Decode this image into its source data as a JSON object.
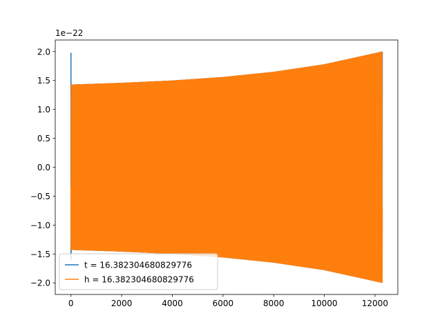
{
  "chart_data": {
    "type": "line",
    "title": "",
    "xlabel": "",
    "ylabel": "",
    "y_offset_label": "1e−22",
    "xlim": [
      -620,
      12900
    ],
    "ylim": [
      -2.2,
      2.2
    ],
    "x_ticks": [
      0,
      2000,
      4000,
      6000,
      8000,
      10000,
      12000
    ],
    "x_tick_labels": [
      "0",
      "2000",
      "4000",
      "6000",
      "8000",
      "10000",
      "12000"
    ],
    "y_ticks": [
      2.0,
      1.5,
      1.0,
      0.5,
      0.0,
      -0.5,
      -1.0,
      -1.5,
      -2.0
    ],
    "y_tick_labels": [
      "2.0",
      "1.5",
      "1.0",
      "0.5",
      "0.0",
      "−0.5",
      "−1.0",
      "−1.5",
      "−2.0"
    ],
    "grid": false,
    "legend_position": "bottom-left",
    "series": [
      {
        "name": "t = 16.382304680829776",
        "color": "#1f77b4",
        "description": "oscillating signal",
        "x_start": 0,
        "x_end": 12288,
        "initial_spike": 1.98,
        "envelope": [
          [
            0,
            1.43
          ],
          [
            2000,
            1.46
          ],
          [
            4000,
            1.5
          ],
          [
            6000,
            1.56
          ],
          [
            8000,
            1.65
          ],
          [
            10000,
            1.78
          ],
          [
            12288,
            2.0
          ]
        ]
      },
      {
        "name": "h = 16.382304680829776",
        "color": "#ff7f0e",
        "description": "oscillating signal",
        "x_start": 0,
        "x_end": 12288,
        "initial_spike": null,
        "envelope": [
          [
            0,
            1.43
          ],
          [
            2000,
            1.46
          ],
          [
            4000,
            1.5
          ],
          [
            6000,
            1.56
          ],
          [
            8000,
            1.65
          ],
          [
            10000,
            1.78
          ],
          [
            12288,
            2.0
          ]
        ]
      }
    ]
  }
}
